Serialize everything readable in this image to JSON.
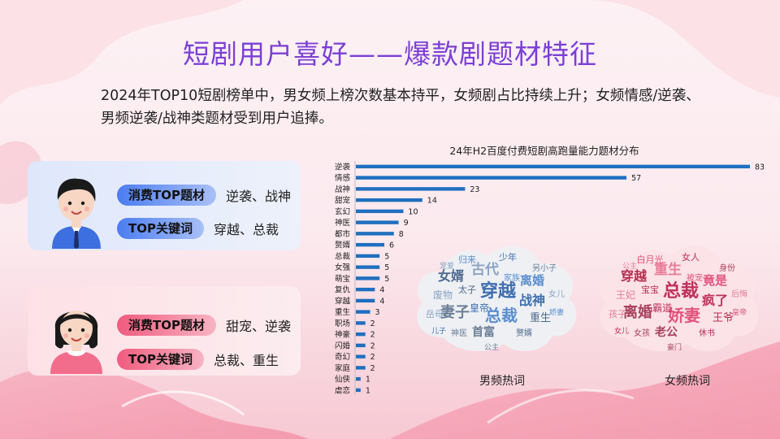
{
  "title": "短剧用户喜好——爆款剧题材特征",
  "subtitle": "2024年TOP10短剧榜单中，男女频上榜次数基本持平，女频剧占比持续上升；女频情感/逆袭、男频逆袭/战神类题材受到用户追捧。",
  "male_card": {
    "genre_label": "消费TOP题材",
    "genre_value": "逆袭、战神",
    "keyword_label": "TOP关键词",
    "keyword_value": "穿越、总裁"
  },
  "female_card": {
    "genre_label": "消费TOP题材",
    "genre_value": "甜宠、逆袭",
    "keyword_label": "TOP关键词",
    "keyword_value": "总裁、重生"
  },
  "chart_data": {
    "type": "bar",
    "orientation": "horizontal",
    "title": "24年H2百度付费短剧高跑量能力题材分布",
    "categories": [
      "逆袭",
      "情感",
      "战神",
      "甜宠",
      "玄幻",
      "神医",
      "都市",
      "赘婿",
      "总裁",
      "女强",
      "萌宝",
      "复仇",
      "穿越",
      "重生",
      "职场",
      "神豪",
      "闪婚",
      "奇幻",
      "家庭",
      "仙侠",
      "虐恋"
    ],
    "values": [
      83,
      57,
      23,
      14,
      10,
      9,
      8,
      6,
      5,
      5,
      5,
      4,
      4,
      3,
      2,
      2,
      2,
      2,
      2,
      1,
      1
    ],
    "bar_color": "#1f6fbf",
    "grid": false
  },
  "wordclouds": {
    "male": {
      "label": "男频热词",
      "words": [
        "穿越",
        "总裁",
        "妻子",
        "古代",
        "女婿",
        "战神",
        "离婚",
        "首富",
        "废物",
        "重生",
        "少年",
        "归来",
        "另小子",
        "岳母",
        "赘婿",
        "皇帝",
        "家族",
        "神医",
        "女儿",
        "太子",
        "儿子",
        "娇妻",
        "公主",
        "宠爱"
      ]
    },
    "female": {
      "label": "女频热词",
      "words": [
        "总裁",
        "娇妻",
        "离婚",
        "重生",
        "穿越",
        "疯了",
        "竟是",
        "老公",
        "王妃",
        "王爷",
        "女人",
        "白月光",
        "身份",
        "孩子",
        "休书",
        "霸道",
        "被宠",
        "女孩",
        "后悔",
        "宝宝",
        "女儿",
        "皇帝",
        "豪门",
        "公主"
      ]
    }
  }
}
